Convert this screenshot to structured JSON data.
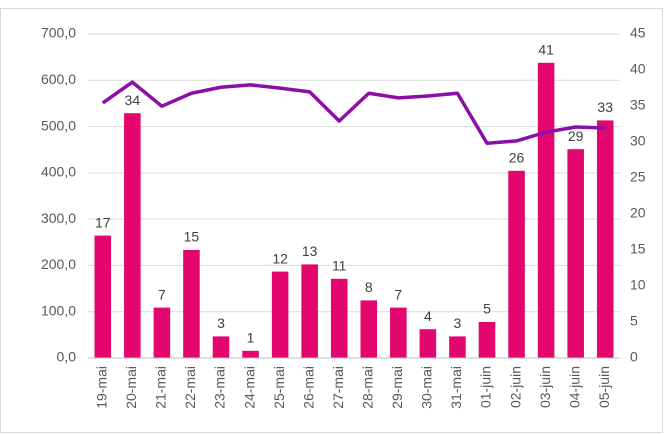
{
  "chart_data": {
    "type": "bar_line",
    "categories": [
      "19-mai",
      "20-mai",
      "21-mai",
      "22-mai",
      "23-mai",
      "24-mai",
      "25-mai",
      "26-mai",
      "27-mai",
      "28-mai",
      "29-mai",
      "30-mai",
      "31-mai",
      "01-juin",
      "02-juin",
      "03-juin",
      "04-juin",
      "05-juin"
    ],
    "series": [
      {
        "type": "bar",
        "axis": "y2",
        "color": "#e2066d",
        "values": [
          17,
          34,
          7,
          15,
          3,
          1,
          12,
          13,
          11,
          8,
          7,
          4,
          3,
          5,
          26,
          41,
          29,
          33
        ]
      },
      {
        "type": "line",
        "axis": "y",
        "color": "#8a0ea8",
        "values": [
          551,
          596,
          544,
          572,
          585,
          590,
          583,
          575,
          512,
          572,
          562,
          566,
          572,
          464,
          469,
          488,
          499,
          497
        ]
      }
    ],
    "ylim": [
      0,
      700
    ],
    "yticks": [
      {
        "value": 0,
        "label": "0,0"
      },
      {
        "value": 100,
        "label": "100,0"
      },
      {
        "value": 200,
        "label": "200,0"
      },
      {
        "value": 300,
        "label": "300,0"
      },
      {
        "value": 400,
        "label": "400,0"
      },
      {
        "value": 500,
        "label": "500,0"
      },
      {
        "value": 600,
        "label": "600,0"
      },
      {
        "value": 700,
        "label": "700,0"
      }
    ],
    "y2lim": [
      0,
      45
    ],
    "y2ticks": [
      0,
      5,
      10,
      15,
      20,
      25,
      30,
      35,
      40,
      45
    ],
    "grid": true
  }
}
